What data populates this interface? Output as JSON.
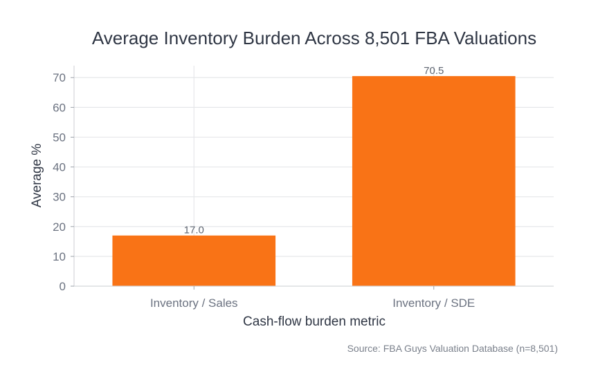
{
  "chart_data": {
    "type": "bar",
    "title": "Average Inventory Burden Across 8,501 FBA Valuations",
    "xlabel": "Cash-flow burden metric",
    "ylabel": "Average %",
    "categories": [
      "Inventory / Sales",
      "Inventory / SDE"
    ],
    "values": [
      17.0,
      70.5
    ],
    "value_labels": [
      "17.0",
      "70.5"
    ],
    "ylim": [
      0,
      74
    ],
    "yticks": [
      0,
      10,
      20,
      30,
      40,
      50,
      60,
      70
    ],
    "grid": true,
    "bar_color": "#f97316",
    "source": "Source: FBA Guys Valuation Database (n=8,501)"
  }
}
